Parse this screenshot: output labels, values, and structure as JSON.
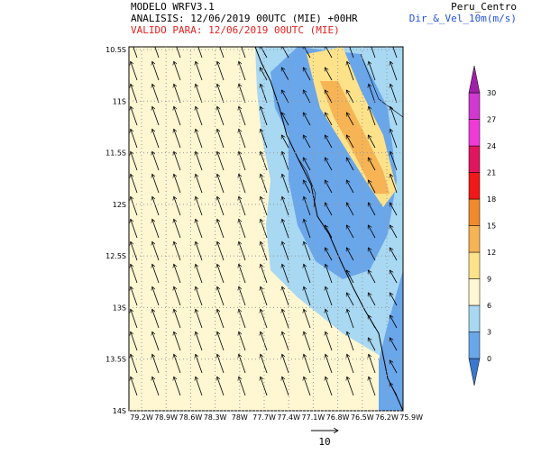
{
  "header": {
    "model": "MODELO WRFV3.1",
    "analysis": "ANALISIS: 12/06/2019 00UTC (MIE) +00HR",
    "valid": "VALIDO PARA: 12/06/2019 00UTC (MIE)",
    "region": "Peru_Centro",
    "variable": "Dir_&_Vel_10m(m/s)"
  },
  "map": {
    "lat_labels": [
      "10.5S",
      "11S",
      "11.5S",
      "12S",
      "12.5S",
      "13S",
      "13.5S",
      "14S"
    ],
    "lon_labels": [
      "79.2W",
      "78.9W",
      "78.6W",
      "78.3W",
      "78W",
      "77.7W",
      "77.4W",
      "77.1W",
      "76.8W",
      "76.5W",
      "76.2W",
      "75.9W"
    ],
    "colorbar": {
      "levels": [
        0,
        3,
        6,
        9,
        12,
        15,
        18,
        21,
        24,
        27,
        30
      ],
      "colors": [
        "#3a78d0",
        "#6aa6ea",
        "#a8d8f2",
        "#fff6d2",
        "#fde28a",
        "#f6b455",
        "#f08a2c",
        "#f01818",
        "#e0155e",
        "#f03ad8",
        "#d038d0",
        "#a020a8"
      ]
    },
    "vector_reference": "10"
  }
}
